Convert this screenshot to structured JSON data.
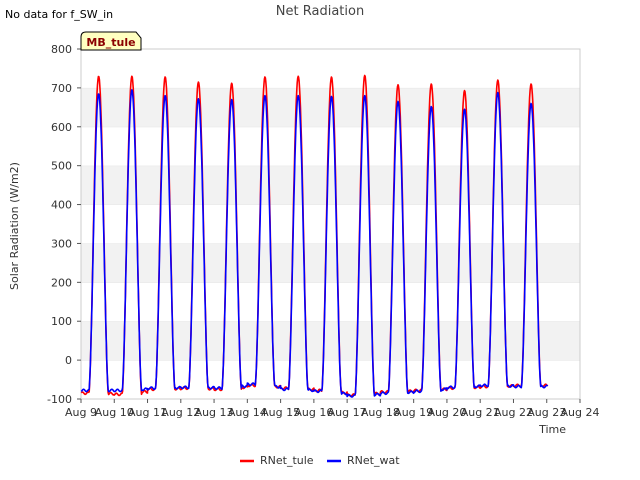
{
  "note": "No data for f_SW_in",
  "badge": "MB_tule",
  "chart_data": {
    "type": "line",
    "title": "Net Radiation",
    "xlabel": "Time",
    "ylabel": "Solar Radiation (W/m2)",
    "ylim": [
      -100,
      800
    ],
    "yticks": [
      -100,
      0,
      100,
      200,
      300,
      400,
      500,
      600,
      700,
      800
    ],
    "xlim": [
      9,
      24
    ],
    "xticks": [
      {
        "value": 9,
        "label": "Aug 9"
      },
      {
        "value": 10,
        "label": "Aug 10"
      },
      {
        "value": 11,
        "label": "Aug 11"
      },
      {
        "value": 12,
        "label": "Aug 12"
      },
      {
        "value": 13,
        "label": "Aug 13"
      },
      {
        "value": 14,
        "label": "Aug 14"
      },
      {
        "value": 15,
        "label": "Aug 15"
      },
      {
        "value": 16,
        "label": "Aug 16"
      },
      {
        "value": 17,
        "label": "Aug 17"
      },
      {
        "value": 18,
        "label": "Aug 18"
      },
      {
        "value": 19,
        "label": "Aug 19"
      },
      {
        "value": 20,
        "label": "Aug 20"
      },
      {
        "value": 21,
        "label": "Aug 21"
      },
      {
        "value": 22,
        "label": "Aug 22"
      },
      {
        "value": 23,
        "label": "Aug 23"
      },
      {
        "value": 24,
        "label": "Aug 24"
      }
    ],
    "grid": "horizontal bands",
    "legend_position": "bottom-center",
    "series": [
      {
        "name": "RNet_tule",
        "color": "#ff0000",
        "daily_peaks": [
          730,
          730,
          728,
          715,
          712,
          728,
          730,
          728,
          732,
          708,
          710,
          693,
          720,
          710
        ],
        "night_values": [
          -85,
          -88,
          -75,
          -72,
          -75,
          -65,
          -72,
          -78,
          -90,
          -82,
          -78,
          -72,
          -68,
          -65
        ]
      },
      {
        "name": "RNet_wat",
        "color": "#0000ff",
        "daily_peaks": [
          685,
          695,
          680,
          672,
          670,
          680,
          680,
          678,
          680,
          665,
          652,
          645,
          688,
          660
        ],
        "night_values": [
          -78,
          -78,
          -72,
          -70,
          -72,
          -62,
          -75,
          -80,
          -92,
          -85,
          -80,
          -70,
          -65,
          -68
        ]
      }
    ]
  }
}
